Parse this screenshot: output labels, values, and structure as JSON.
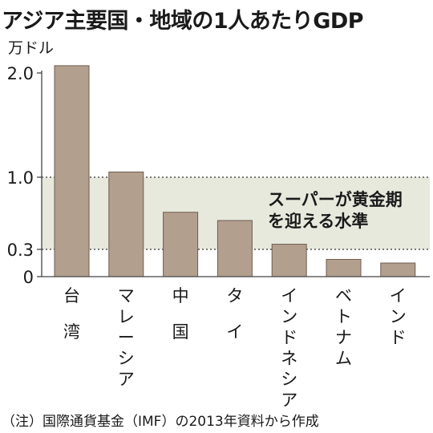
{
  "title": "アジア主要国・地域の1人あたりGDP",
  "note": "（注）国際通貨基金（IMF）の2013年資料から作成",
  "chart_data": {
    "type": "bar",
    "ylabel": "万ドル",
    "y_ticks": [
      {
        "value": 0,
        "label": "0"
      },
      {
        "value": 0.3,
        "label": "0.3"
      },
      {
        "value": 1.0,
        "label": "1.0"
      },
      {
        "value": 2.0,
        "label": "2.0"
      }
    ],
    "categories": [
      "台湾",
      "マレーシア",
      "中国",
      "タイ",
      "インドネシア",
      "ベトナム",
      "インド"
    ],
    "values": [
      2.07,
      1.05,
      0.66,
      0.58,
      0.35,
      0.19,
      0.15
    ],
    "ylim": [
      0,
      2.1
    ],
    "band": {
      "from": 0.3,
      "to": 1.0,
      "label_lines": [
        "スーパーが黄金期",
        "を迎える水準"
      ]
    },
    "colors": {
      "bar": "#b39f8e",
      "bar_stroke": "#6e5d51",
      "band": "#e7e9dd",
      "axis": "#444444"
    }
  }
}
